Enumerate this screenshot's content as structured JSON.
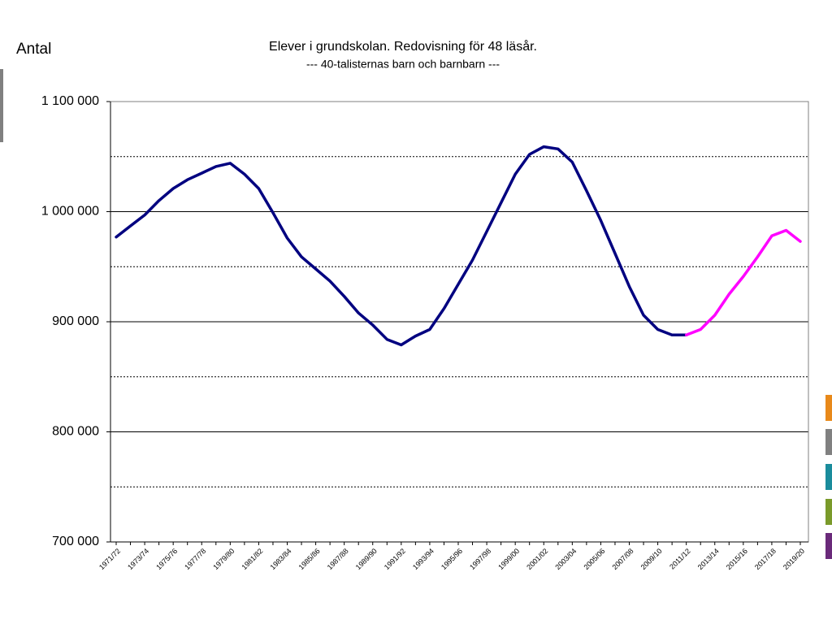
{
  "chart_data": {
    "type": "line",
    "title": "Elever i grundskolan. Redovisning för 48 läsår.",
    "subtitle": "---   40-talisternas barn och barnbarn  ---",
    "y_axis_label": "Antal",
    "categories": [
      "1971/72",
      null,
      "1973/74",
      null,
      "1975/76",
      null,
      "1977/78",
      null,
      "1979/80",
      null,
      "1981/82",
      null,
      "1983/84",
      null,
      "1985/86",
      null,
      "1987/88",
      null,
      "1989/90",
      null,
      "1991/92",
      null,
      "1993/94",
      null,
      "1995/96",
      null,
      "1997/98",
      null,
      "1999/00",
      null,
      "2001/02",
      null,
      "2003/04",
      null,
      "2005/06",
      null,
      "2007/08",
      null,
      "2009/10",
      null,
      "2011/12",
      null,
      "2013/14",
      null,
      "2015/16",
      null,
      "2017/18",
      null,
      "2019/20"
    ],
    "series": [
      {
        "color": "#000080",
        "values": [
          977000,
          987000,
          997000,
          1010000,
          1021000,
          1029000,
          1035000,
          1041000,
          1044000,
          1034000,
          1021000,
          999000,
          976000,
          959000,
          948000,
          937000,
          923000,
          908000,
          897000,
          884000,
          879000,
          887000,
          893000,
          912000,
          934000,
          956000,
          982000,
          1008000,
          1034000,
          1052000,
          1059000,
          1057000,
          1045000,
          1019000,
          992000,
          962000,
          932000,
          906000,
          893000,
          888000,
          888000,
          null,
          null,
          null,
          null,
          null,
          null,
          null,
          null
        ]
      },
      {
        "color": "#ff00ff",
        "values": [
          null,
          null,
          null,
          null,
          null,
          null,
          null,
          null,
          null,
          null,
          null,
          null,
          null,
          null,
          null,
          null,
          null,
          null,
          null,
          null,
          null,
          null,
          null,
          null,
          null,
          null,
          null,
          null,
          null,
          null,
          null,
          null,
          null,
          null,
          null,
          null,
          null,
          null,
          null,
          null,
          888000,
          893000,
          906000,
          925000,
          941000,
          959000,
          978000,
          983000,
          973000
        ]
      }
    ],
    "ylim": [
      700000,
      1100000
    ],
    "yticks": [
      {
        "value": 700000,
        "label": "700 000"
      },
      {
        "value": 800000,
        "label": "800 000"
      },
      {
        "value": 900000,
        "label": "900 000"
      },
      {
        "value": 1000000,
        "label": "1 000 000"
      },
      {
        "value": 1100000,
        "label": "1 100 000"
      }
    ],
    "yminorticks": [
      750000,
      850000,
      950000,
      1050000
    ],
    "grid": true
  }
}
